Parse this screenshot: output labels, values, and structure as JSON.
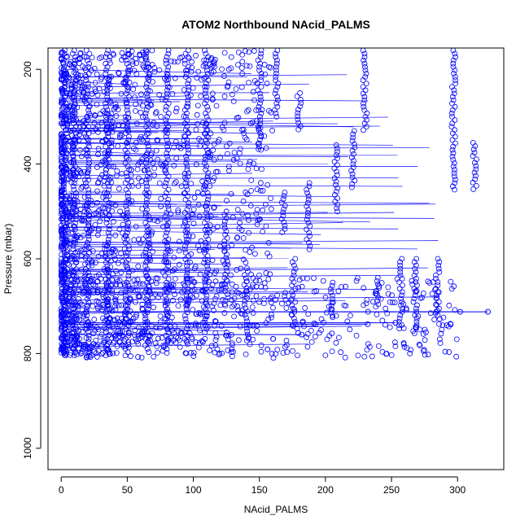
{
  "chart_data": {
    "type": "scatter",
    "title": "ATOM2 Northbound NAcid_PALMS",
    "xlabel": "NAcid_PALMS",
    "ylabel": "Pressure (mbar)",
    "xlim": [
      -10,
      335
    ],
    "ylim": [
      1045,
      155
    ],
    "y_reversed": true,
    "x_ticks": [
      0,
      50,
      100,
      150,
      200,
      250,
      300
    ],
    "y_ticks": [
      200,
      400,
      600,
      800,
      1000
    ],
    "grid": false,
    "legend": "none",
    "marker": "open-circle",
    "connect_points": true,
    "colors": {
      "series": "#0000ff",
      "axis": "#000000"
    },
    "profiles": [
      {
        "x": 297,
        "p_top": 160,
        "p_bottom": 455
      },
      {
        "x": 313,
        "p_top": 355,
        "p_bottom": 455
      },
      {
        "x": 230,
        "p_top": 160,
        "p_bottom": 330
      },
      {
        "x": 221,
        "p_top": 330,
        "p_bottom": 455
      },
      {
        "x": 208,
        "p_top": 360,
        "p_bottom": 500
      },
      {
        "x": 180,
        "p_top": 250,
        "p_bottom": 330
      },
      {
        "x": 163,
        "p_top": 160,
        "p_bottom": 300
      },
      {
        "x": 150,
        "p_top": 160,
        "p_bottom": 370
      },
      {
        "x": 168,
        "p_top": 460,
        "p_bottom": 545
      },
      {
        "x": 187,
        "p_top": 440,
        "p_bottom": 580
      },
      {
        "x": 257,
        "p_top": 600,
        "p_bottom": 750
      },
      {
        "x": 268,
        "p_top": 600,
        "p_bottom": 750
      },
      {
        "x": 285,
        "p_top": 600,
        "p_bottom": 720
      },
      {
        "x": 240,
        "p_top": 640,
        "p_bottom": 700
      },
      {
        "x": 205,
        "p_top": 650,
        "p_bottom": 720
      },
      {
        "x": 176,
        "p_top": 600,
        "p_bottom": 740
      },
      {
        "x": 140,
        "p_top": 620,
        "p_bottom": 760
      },
      {
        "x": 125,
        "p_top": 500,
        "p_bottom": 700
      },
      {
        "x": 110,
        "p_top": 160,
        "p_bottom": 760
      },
      {
        "x": 95,
        "p_top": 160,
        "p_bottom": 780
      },
      {
        "x": 80,
        "p_top": 160,
        "p_bottom": 790
      },
      {
        "x": 65,
        "p_top": 160,
        "p_bottom": 800
      },
      {
        "x": 50,
        "p_top": 160,
        "p_bottom": 810
      },
      {
        "x": 35,
        "p_top": 160,
        "p_bottom": 810
      },
      {
        "x": 20,
        "p_top": 160,
        "p_bottom": 810
      },
      {
        "x": 10,
        "p_top": 160,
        "p_bottom": 810
      },
      {
        "x": 3,
        "p_top": 160,
        "p_bottom": 810
      }
    ],
    "extreme_points": [
      {
        "x": 323,
        "p": 712
      },
      {
        "x": 302,
        "p": 712
      },
      {
        "x": 253,
        "p": 735
      },
      {
        "x": 232,
        "p": 738
      },
      {
        "x": 182,
        "p": 760
      }
    ]
  }
}
